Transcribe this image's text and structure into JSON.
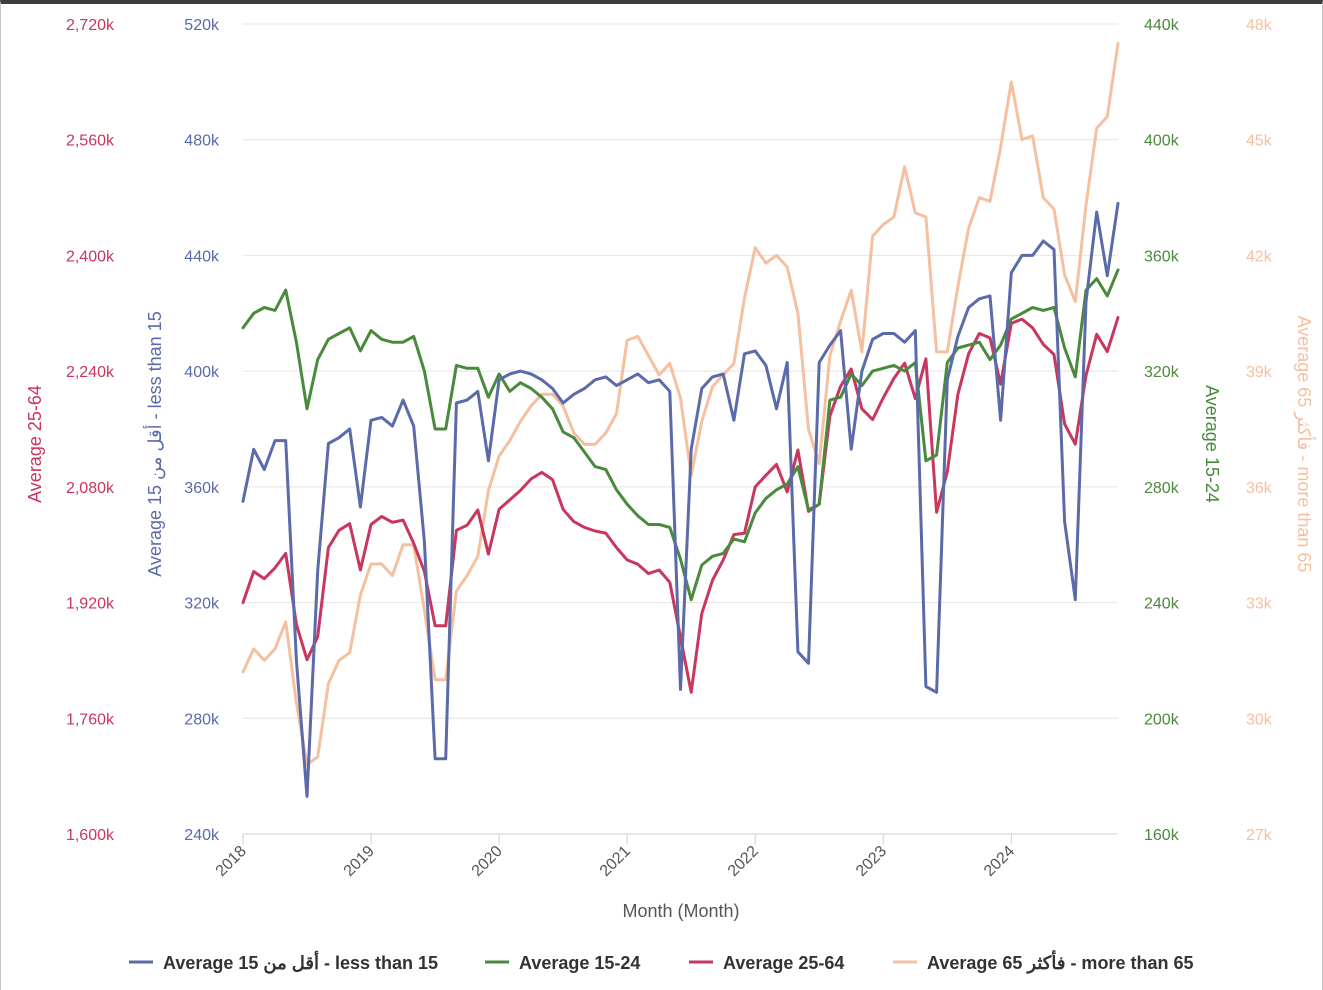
{
  "chart_data": {
    "type": "line",
    "xlabel": "Month (Month)",
    "x_ticks": [
      "2018",
      "2019",
      "2020",
      "2021",
      "2022",
      "2023",
      "2024"
    ],
    "x_start": "2018-01",
    "grid": true,
    "legend_position": "bottom",
    "axes": [
      {
        "id": "a25",
        "title": "Average 25-64",
        "color": "#c9365e",
        "min": 1600,
        "max": 2720,
        "ticks": [
          "1,600k",
          "1,760k",
          "1,920k",
          "2,080k",
          "2,240k",
          "2,400k",
          "2,560k",
          "2,720k"
        ]
      },
      {
        "id": "a15",
        "title": "Average 15 أقل من - less than 15",
        "color": "#5b6aa8",
        "min": 240,
        "max": 520,
        "ticks": [
          "240k",
          "280k",
          "320k",
          "360k",
          "400k",
          "440k",
          "480k",
          "520k"
        ]
      },
      {
        "id": "a1524",
        "title": "Average 15-24",
        "color": "#4a8a3c",
        "min": 160,
        "max": 440,
        "ticks": [
          "160k",
          "200k",
          "240k",
          "280k",
          "320k",
          "360k",
          "400k",
          "440k"
        ]
      },
      {
        "id": "a65",
        "title": "Average 65 فأكثر - more than 65",
        "color": "#f5c0a0",
        "min": 27,
        "max": 48,
        "ticks": [
          "27k",
          "30k",
          "33k",
          "36k",
          "39k",
          "42k",
          "45k",
          "48k"
        ]
      }
    ],
    "series": [
      {
        "name": "Average 15 أقل من - less than 15",
        "axis": "a15",
        "color": "#5b6aa8",
        "values": [
          355,
          373,
          366,
          376,
          376,
          300,
          253,
          331,
          375,
          377,
          380,
          353,
          383,
          384,
          381,
          390,
          381,
          341,
          266,
          266,
          389,
          390,
          393,
          369,
          397,
          399,
          400,
          399,
          397,
          394,
          389,
          392,
          394,
          397,
          398,
          395,
          397,
          399,
          396,
          397,
          393,
          290,
          373,
          394,
          398,
          399,
          383,
          406,
          407,
          402,
          387,
          403,
          303,
          299,
          403,
          409,
          414,
          373,
          400,
          411,
          413,
          413,
          410,
          414,
          291,
          289,
          397,
          412,
          422,
          425,
          426,
          383,
          434,
          440,
          440,
          445,
          442,
          348,
          321,
          424,
          455,
          433,
          458
        ]
      },
      {
        "name": "Average 15-24",
        "axis": "a1524",
        "color": "#4a8a3c",
        "values": [
          335,
          340,
          342,
          341,
          348,
          330,
          307,
          324,
          331,
          333,
          335,
          327,
          334,
          331,
          330,
          330,
          332,
          320,
          300,
          300,
          322,
          321,
          321,
          311,
          319,
          313,
          316,
          314,
          311,
          307,
          299,
          297,
          292,
          287,
          286,
          279,
          274,
          270,
          267,
          267,
          266,
          255,
          241,
          253,
          256,
          257,
          262,
          261,
          271,
          276,
          279,
          281,
          287,
          272,
          274,
          310,
          311,
          319,
          315,
          320,
          321,
          322,
          320,
          323,
          289,
          291,
          323,
          328,
          329,
          330,
          324,
          329,
          338,
          340,
          342,
          341,
          342,
          328,
          318,
          348,
          352,
          346,
          355
        ]
      },
      {
        "name": "Average 25-64",
        "axis": "a25",
        "color": "#c9365e",
        "values": [
          1920,
          1963,
          1953,
          1968,
          1988,
          1890,
          1841,
          1873,
          1996,
          2020,
          2029,
          1965,
          2028,
          2039,
          2031,
          2034,
          2002,
          1963,
          1888,
          1888,
          2020,
          2027,
          2048,
          1987,
          2049,
          2062,
          2075,
          2091,
          2100,
          2090,
          2049,
          2032,
          2024,
          2019,
          2016,
          1996,
          1979,
          1973,
          1960,
          1965,
          1948,
          1872,
          1796,
          1905,
          1951,
          1979,
          2014,
          2016,
          2080,
          2096,
          2111,
          2073,
          2131,
          2046,
          2056,
          2178,
          2219,
          2243,
          2188,
          2173,
          2203,
          2230,
          2251,
          2202,
          2257,
          2045,
          2101,
          2208,
          2264,
          2292,
          2286,
          2222,
          2306,
          2312,
          2300,
          2277,
          2263,
          2167,
          2139,
          2234,
          2291,
          2267,
          2314
        ]
      },
      {
        "name": "Average 65 فأكثر - more than 65",
        "axis": "a65",
        "color": "#f5c0a0",
        "values": [
          31.2,
          31.8,
          31.5,
          31.8,
          32.5,
          30.4,
          28.8,
          29.0,
          30.9,
          31.5,
          31.7,
          33.2,
          34.0,
          34.0,
          33.7,
          34.5,
          34.5,
          32.8,
          31.0,
          31.0,
          33.3,
          33.7,
          34.2,
          35.9,
          36.8,
          37.2,
          37.7,
          38.1,
          38.4,
          38.4,
          38.1,
          37.4,
          37.1,
          37.1,
          37.4,
          37.9,
          39.8,
          39.9,
          39.4,
          38.9,
          39.2,
          38.3,
          36.3,
          37.7,
          38.6,
          38.9,
          39.2,
          40.9,
          42.2,
          41.8,
          42.0,
          41.7,
          40.5,
          37.5,
          36.6,
          39.4,
          40.3,
          41.1,
          39.5,
          42.5,
          42.8,
          43.0,
          44.3,
          43.1,
          43.0,
          39.5,
          39.5,
          41.2,
          42.7,
          43.5,
          43.4,
          44.8,
          46.5,
          45.0,
          45.1,
          43.5,
          43.2,
          41.5,
          40.8,
          43.3,
          45.3,
          45.6,
          47.5
        ]
      }
    ]
  }
}
